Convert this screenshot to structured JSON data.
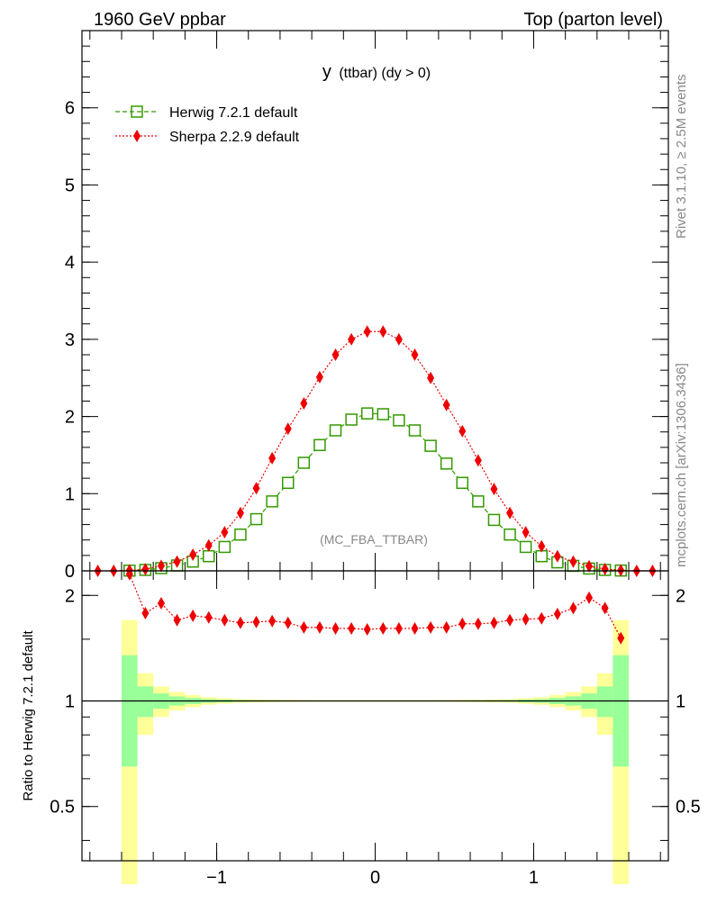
{
  "header": {
    "left": "1960 GeV ppbar",
    "right": "Top (parton level)"
  },
  "side": {
    "rivet": "Rivet 3.1.10, ≥ 2.5M events",
    "mcplots": "mcplots.cern.ch [arXiv:1306.3436]"
  },
  "chart_data": [
    {
      "type": "line",
      "title": "y (ttbar) (dy > 0)",
      "title_main": "y",
      "title_rest": "(ttbar) (dy > 0)",
      "watermark": "(MC_FBA_TTBAR)",
      "xlabel": "",
      "ylabel": "",
      "xlim": [
        -1.85,
        1.85
      ],
      "ylim": [
        0,
        7
      ],
      "x_ticks": [
        -1,
        0,
        1
      ],
      "x_tick_labels": [
        "−1",
        "0",
        "1"
      ],
      "y_ticks": [
        0,
        1,
        2,
        3,
        4,
        5,
        6
      ],
      "y_tick_labels": [
        "0",
        "1",
        "2",
        "3",
        "4",
        "5",
        "6"
      ],
      "legend": "top-left",
      "series": [
        {
          "name": "Herwig 7.2.1 default",
          "color": "#339900",
          "marker": "open-square",
          "x": [
            -1.55,
            -1.45,
            -1.35,
            -1.25,
            -1.15,
            -1.05,
            -0.95,
            -0.85,
            -0.75,
            -0.65,
            -0.55,
            -0.45,
            -0.35,
            -0.25,
            -0.15,
            -0.05,
            0.05,
            0.15,
            0.25,
            0.35,
            0.45,
            0.55,
            0.65,
            0.75,
            0.85,
            0.95,
            1.05,
            1.15,
            1.25,
            1.35,
            1.45,
            1.55
          ],
          "y": [
            0.003,
            0.012,
            0.035,
            0.07,
            0.12,
            0.19,
            0.31,
            0.47,
            0.67,
            0.9,
            1.14,
            1.4,
            1.63,
            1.82,
            1.96,
            2.04,
            2.03,
            1.95,
            1.82,
            1.62,
            1.39,
            1.14,
            0.9,
            0.66,
            0.47,
            0.31,
            0.19,
            0.11,
            0.065,
            0.03,
            0.012,
            0.004
          ]
        },
        {
          "name": "Sherpa 2.2.9 default",
          "color": "#ee0000",
          "marker": "filled-diamond",
          "x": [
            -1.75,
            -1.65,
            -1.55,
            -1.45,
            -1.35,
            -1.25,
            -1.15,
            -1.05,
            -0.95,
            -0.85,
            -0.75,
            -0.65,
            -0.55,
            -0.45,
            -0.35,
            -0.25,
            -0.15,
            -0.05,
            0.05,
            0.15,
            0.25,
            0.35,
            0.45,
            0.55,
            0.65,
            0.75,
            0.85,
            0.95,
            1.05,
            1.15,
            1.25,
            1.35,
            1.45,
            1.55,
            1.65,
            1.75
          ],
          "y": [
            0.0,
            0.0,
            0.007,
            0.021,
            0.066,
            0.12,
            0.21,
            0.33,
            0.5,
            0.75,
            1.07,
            1.46,
            1.84,
            2.17,
            2.51,
            2.8,
            3.0,
            3.1,
            3.1,
            3.0,
            2.8,
            2.5,
            2.15,
            1.81,
            1.43,
            1.06,
            0.75,
            0.5,
            0.32,
            0.19,
            0.12,
            0.06,
            0.024,
            0.008,
            0.0,
            0.0
          ]
        }
      ]
    },
    {
      "type": "line",
      "ylabel": "Ratio to Herwig 7.2.1 default",
      "xlim": [
        -1.85,
        1.85
      ],
      "ylim": [
        0.35,
        2.35
      ],
      "y_ticks": [
        0.5,
        1,
        2
      ],
      "y_tick_labels": [
        "0.5",
        "1",
        "2"
      ],
      "x_ticks": [
        -1,
        0,
        1
      ],
      "x_tick_labels": [
        "−1",
        "0",
        "1"
      ],
      "reference_line": 1,
      "band_bins": [
        -1.6,
        -1.5,
        -1.4,
        -1.3,
        -1.2,
        -1.1,
        -1.0,
        -0.9,
        -0.8,
        -0.7,
        -0.6,
        -0.5,
        -0.4,
        -0.3,
        -0.2,
        -0.1,
        0.0,
        0.1,
        0.2,
        0.3,
        0.4,
        0.5,
        0.6,
        0.7,
        0.8,
        0.9,
        1.0,
        1.1,
        1.2,
        1.3,
        1.4,
        1.5,
        1.6
      ],
      "band_yellow_halfwidth": [
        0.7,
        0.2,
        0.1,
        0.06,
        0.04,
        0.025,
        0.018,
        0.012,
        0.01,
        0.008,
        0.007,
        0.006,
        0.005,
        0.005,
        0.005,
        0.005,
        0.005,
        0.005,
        0.005,
        0.005,
        0.006,
        0.007,
        0.008,
        0.01,
        0.012,
        0.018,
        0.025,
        0.04,
        0.06,
        0.1,
        0.2,
        0.7
      ],
      "band_green_halfwidth": [
        0.35,
        0.1,
        0.05,
        0.03,
        0.02,
        0.012,
        0.009,
        0.006,
        0.005,
        0.004,
        0.003,
        0.003,
        0.002,
        0.002,
        0.002,
        0.002,
        0.002,
        0.002,
        0.002,
        0.002,
        0.003,
        0.003,
        0.004,
        0.005,
        0.006,
        0.009,
        0.012,
        0.02,
        0.03,
        0.05,
        0.1,
        0.35
      ],
      "series": [
        {
          "name": "Sherpa 2.2.9 default / Herwig 7.2.1 default",
          "color": "#ee0000",
          "marker": "filled-diamond",
          "x": [
            -1.55,
            -1.45,
            -1.35,
            -1.25,
            -1.15,
            -1.05,
            -0.95,
            -0.85,
            -0.75,
            -0.65,
            -0.55,
            -0.45,
            -0.35,
            -0.25,
            -0.15,
            -0.05,
            0.05,
            0.15,
            0.25,
            0.35,
            0.45,
            0.55,
            0.65,
            0.75,
            0.85,
            0.95,
            1.05,
            1.15,
            1.25,
            1.35,
            1.45,
            1.55
          ],
          "y": [
            2.3,
            1.78,
            1.9,
            1.7,
            1.75,
            1.73,
            1.7,
            1.67,
            1.68,
            1.69,
            1.67,
            1.62,
            1.62,
            1.61,
            1.61,
            1.6,
            1.61,
            1.61,
            1.61,
            1.62,
            1.62,
            1.66,
            1.66,
            1.67,
            1.7,
            1.71,
            1.72,
            1.77,
            1.84,
            1.97,
            1.84,
            1.51
          ]
        }
      ]
    }
  ]
}
